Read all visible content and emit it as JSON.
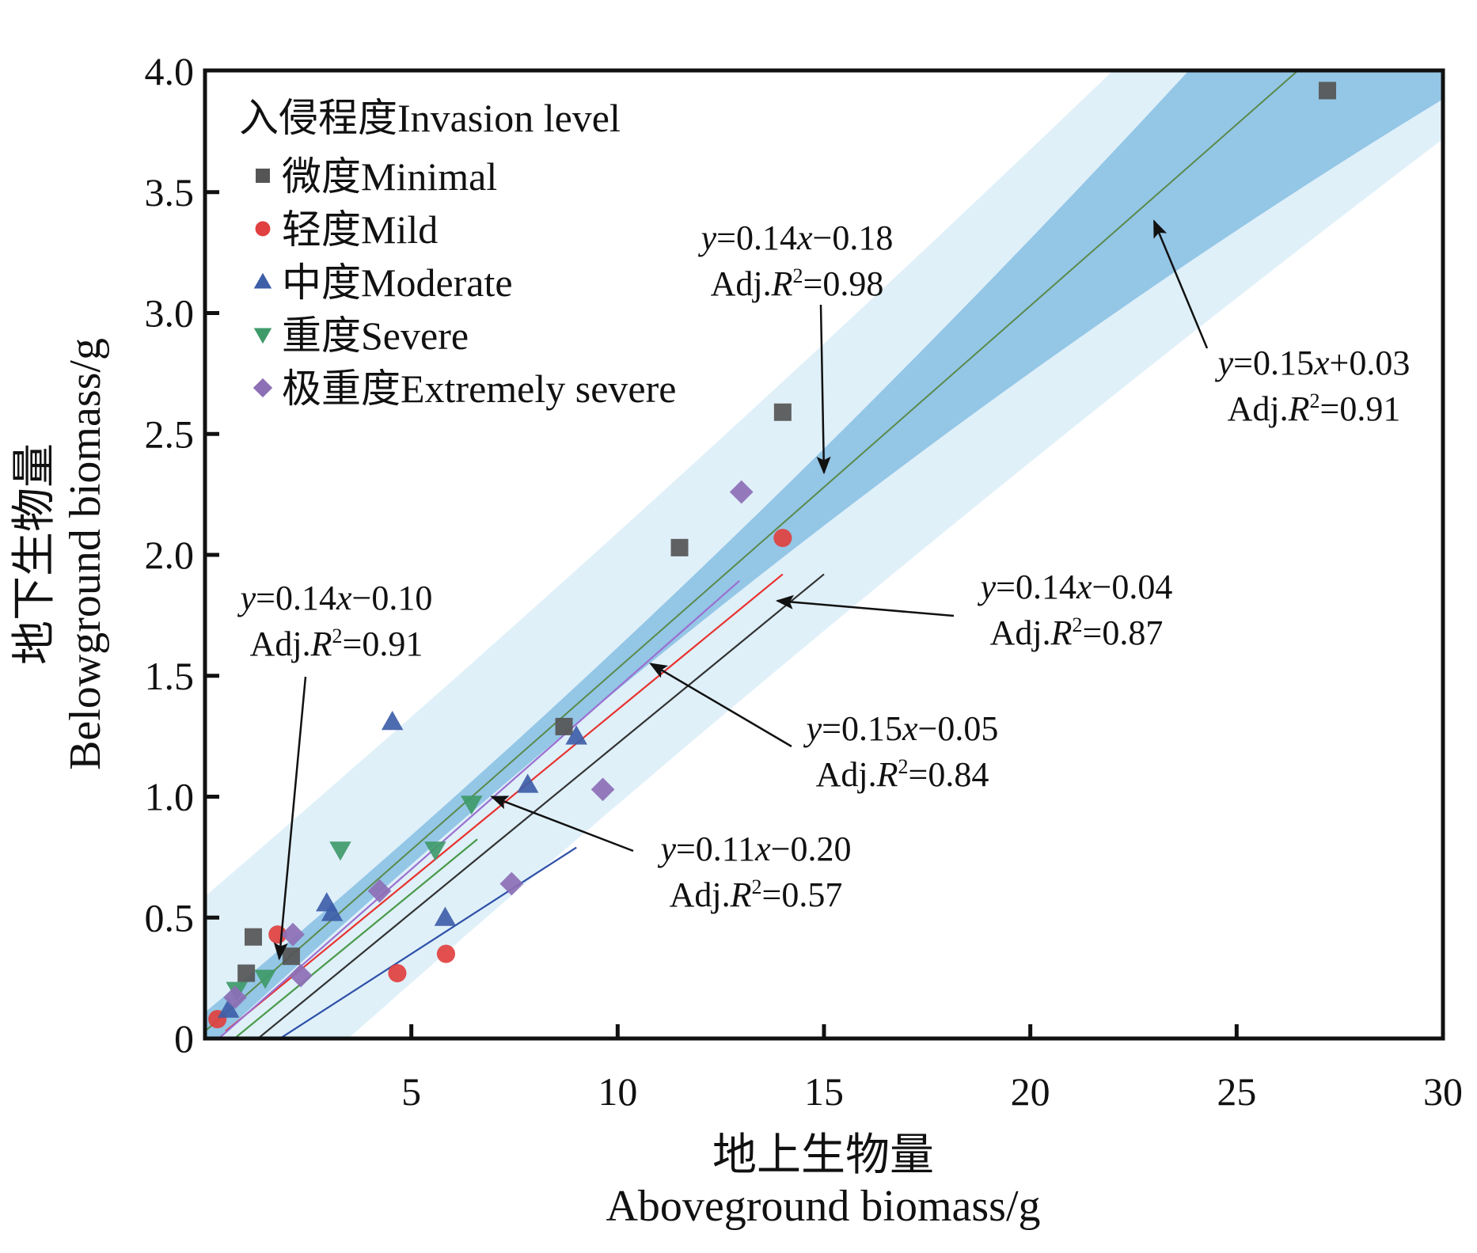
{
  "chart_data": {
    "type": "scatter",
    "title": "",
    "xlabel_cn": "地上生物量",
    "xlabel": "Aboveground biomass/g",
    "ylabel_cn": "地下生物量",
    "ylabel": "Belowground biomass/g",
    "xlim": [
      0,
      30
    ],
    "ylim": [
      0,
      4.0
    ],
    "x_ticks": [
      5,
      10,
      15,
      20,
      25,
      30
    ],
    "x_tick_labels": [
      "5",
      "10",
      "15",
      "20",
      "25",
      "30"
    ],
    "y_ticks": [
      0,
      0.5,
      1.0,
      1.5,
      2.0,
      2.5,
      3.0,
      3.5,
      4.0
    ],
    "y_tick_labels": [
      "0",
      "0.5",
      "1.0",
      "1.5",
      "2.0",
      "2.5",
      "3.0",
      "3.5",
      "4.0"
    ],
    "grid": false,
    "legend": {
      "title": "入侵程度Invasion level",
      "placement": "top-left"
    },
    "series": [
      {
        "name": "微度Minimal",
        "marker": "square",
        "color": "#555555",
        "points": [
          [
            1.17,
            0.42
          ],
          [
            1.0,
            0.27
          ],
          [
            2.09,
            0.34
          ],
          [
            8.7,
            1.29
          ],
          [
            11.5,
            2.03
          ],
          [
            14.0,
            2.59
          ],
          [
            27.2,
            3.92
          ]
        ],
        "fit": {
          "slope": 0.14,
          "intercept": -0.18,
          "x_range": [
            0,
            15.0
          ],
          "line_color": "#333333",
          "equation": "y=0.14x−0.18",
          "adj_r2": "Adj.R²=0.98"
        }
      },
      {
        "name": "轻度Mild",
        "marker": "circle",
        "color": "#e0403f",
        "points": [
          [
            0.3,
            0.08
          ],
          [
            1.76,
            0.43
          ],
          [
            4.66,
            0.27
          ],
          [
            5.84,
            0.35
          ],
          [
            14.0,
            2.07
          ]
        ],
        "fit": {
          "slope": 0.14,
          "intercept": -0.04,
          "x_range": [
            0.5,
            14.0
          ],
          "line_color": "#e8312e",
          "equation": "y=0.14x−0.04",
          "adj_r2": "Adj.R²=0.87"
        }
      },
      {
        "name": "中度Moderate",
        "marker": "triangle-up",
        "color": "#3e5ea8",
        "points": [
          [
            0.57,
            0.12
          ],
          [
            2.95,
            0.56
          ],
          [
            3.08,
            0.52
          ],
          [
            4.54,
            1.31
          ],
          [
            5.82,
            0.5
          ],
          [
            7.82,
            1.05
          ],
          [
            9.0,
            1.25
          ]
        ],
        "fit": {
          "slope": 0.11,
          "intercept": -0.2,
          "x_range": [
            0.3,
            9.0
          ],
          "line_color": "#2e50a8",
          "equation": "y=0.11x−0.20",
          "adj_r2": "Adj.R²=0.57"
        }
      },
      {
        "name": "重度Severe",
        "marker": "triangle-down",
        "color": "#3f9a6a",
        "points": [
          [
            0.77,
            0.2
          ],
          [
            1.46,
            0.25
          ],
          [
            3.28,
            0.78
          ],
          [
            5.58,
            0.78
          ],
          [
            6.46,
            0.97
          ]
        ],
        "fit": {
          "slope": 0.14,
          "intercept": -0.1,
          "x_range": [
            0,
            6.6
          ],
          "line_color": "#4a9a4a",
          "equation": "y=0.14x−0.10",
          "adj_r2": "Adj.R²=0.91"
        }
      },
      {
        "name": "极重度Extremely severe",
        "marker": "diamond",
        "color": "#8c6fb5",
        "points": [
          [
            0.73,
            0.17
          ],
          [
            2.13,
            0.43
          ],
          [
            2.32,
            0.26
          ],
          [
            4.23,
            0.61
          ],
          [
            7.43,
            0.64
          ],
          [
            9.64,
            1.03
          ],
          [
            13.0,
            2.26
          ]
        ],
        "fit": {
          "slope": 0.15,
          "intercept": -0.05,
          "x_range": [
            0.3,
            12.95
          ],
          "line_color": "#9b6fd0",
          "equation": "y=0.15x−0.05",
          "adj_r2": "Adj.R²=0.84"
        }
      }
    ],
    "overall_fit": {
      "slope": 0.15,
      "intercept": 0.03,
      "x_range": [
        0,
        27.2
      ],
      "line_color": "#5a8a4a",
      "equation": "y=0.15x+0.03",
      "adj_r2": "Adj.R²=0.91",
      "confidence_band_color": "#94c6e6",
      "prediction_band_color": "#dff0f9"
    },
    "annotations": [
      {
        "id": "minimal",
        "equation": "y=0.14x−0.18",
        "r2": "0.98",
        "points_to": [
          15.0,
          2.34
        ]
      },
      {
        "id": "overall",
        "equation": "y=0.15x+0.03",
        "r2": "0.91",
        "points_to": [
          23.0,
          3.38
        ]
      },
      {
        "id": "mild",
        "equation": "y=0.14x−0.04",
        "r2": "0.87",
        "points_to": [
          13.87,
          1.81
        ]
      },
      {
        "id": "extreme",
        "equation": "y=0.15x−0.05",
        "r2": "0.84",
        "points_to": [
          10.8,
          1.55
        ]
      },
      {
        "id": "moderate",
        "equation": "y=0.11x−0.20",
        "r2": "0.57",
        "points_to": [
          6.95,
          1.0
        ]
      },
      {
        "id": "severe",
        "equation": "y=0.14x−0.10",
        "r2": "0.91",
        "points_to": [
          1.8,
          0.33
        ]
      }
    ]
  },
  "labels": {
    "adj_prefix": "Adj.",
    "r_letter": "R",
    "r_sup": "2",
    "eq_y": "y",
    "eq_x": "x"
  }
}
